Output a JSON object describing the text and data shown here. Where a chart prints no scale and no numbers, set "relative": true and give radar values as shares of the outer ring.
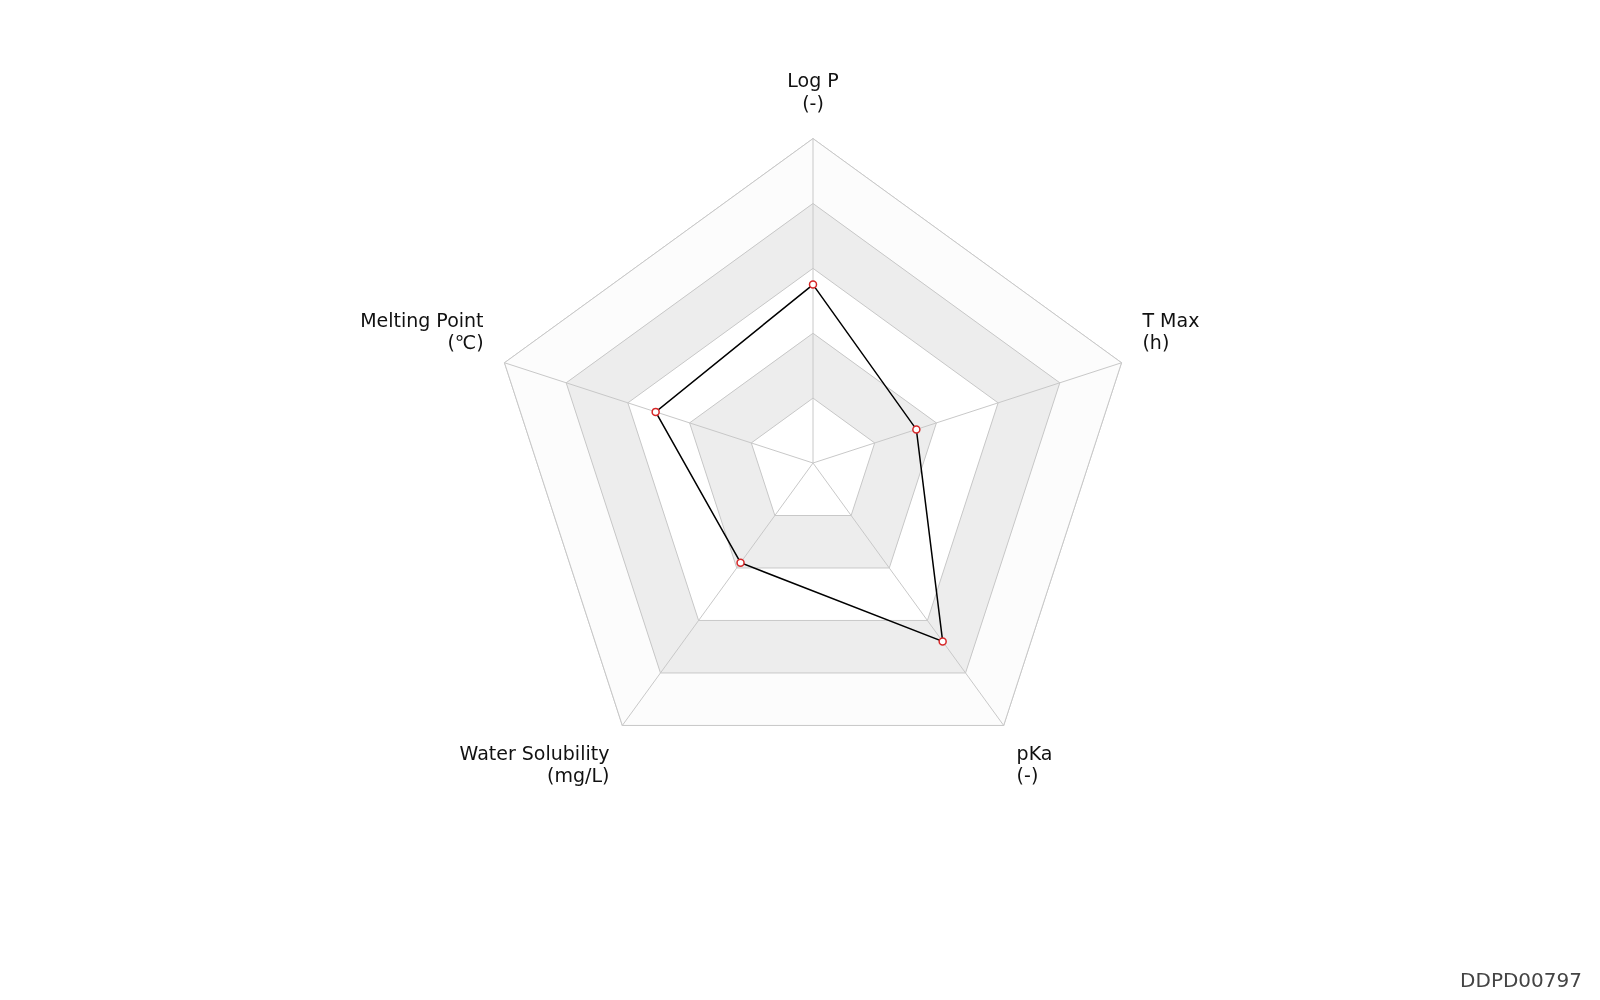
{
  "chart_data": {
    "type": "radar",
    "relative": true,
    "categories": [
      "Log P\n(-)",
      "T Max\n(h)",
      "pKa\n(-)",
      "Water Solubility\n(mg/L)",
      "Melting Point\n(℃)"
    ],
    "series": [
      {
        "color": "#000000",
        "values": [
          0.55,
          0.335,
          0.68,
          0.38,
          0.51
        ]
      }
    ],
    "marker": "circle",
    "grid": true,
    "legend": false,
    "annotations": [
      "DDPD00797"
    ]
  }
}
